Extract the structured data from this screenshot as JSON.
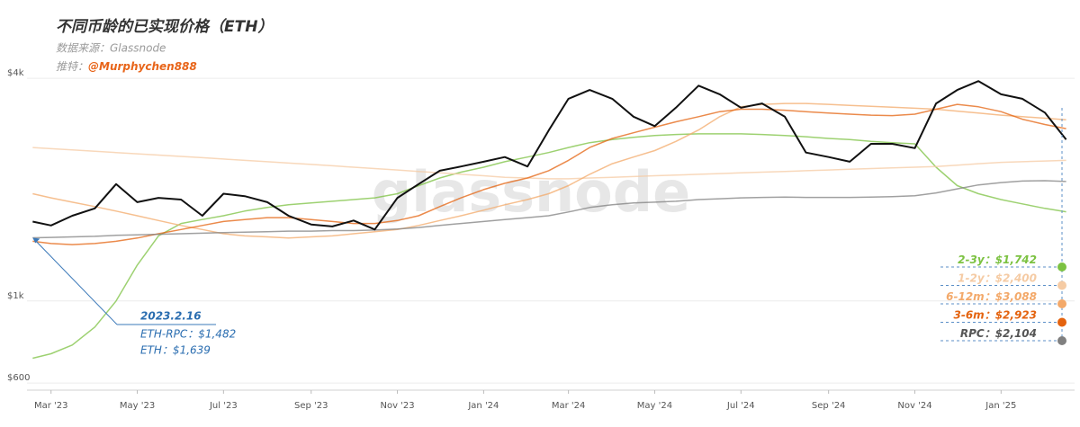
{
  "chart_data": {
    "type": "line",
    "title": "不同币龄的已实现价格（ETH）",
    "source": "数据来源：Glassnode",
    "twitter_label": "推特：",
    "twitter_handle": "@Murphychen888",
    "watermark": "glassnode",
    "log_scale": true,
    "grid": true,
    "x": [
      "2023-02-16",
      "2023-03-01",
      "2023-03-16",
      "2023-04-01",
      "2023-04-16",
      "2023-05-01",
      "2023-05-16",
      "2023-06-01",
      "2023-06-16",
      "2023-07-01",
      "2023-07-16",
      "2023-08-01",
      "2023-08-16",
      "2023-09-01",
      "2023-09-16",
      "2023-10-01",
      "2023-10-16",
      "2023-11-01",
      "2023-11-16",
      "2023-12-01",
      "2023-12-16",
      "2024-01-01",
      "2024-01-16",
      "2024-02-01",
      "2024-02-16",
      "2024-03-01",
      "2024-03-16",
      "2024-04-01",
      "2024-04-16",
      "2024-05-01",
      "2024-05-16",
      "2024-06-01",
      "2024-06-16",
      "2024-07-01",
      "2024-07-16",
      "2024-08-01",
      "2024-08-16",
      "2024-09-01",
      "2024-09-16",
      "2024-10-01",
      "2024-10-16",
      "2024-11-01",
      "2024-11-16",
      "2024-12-01",
      "2024-12-16",
      "2025-01-01",
      "2025-01-16",
      "2025-02-01",
      "2025-02-16"
    ],
    "xlim": [
      "2023-02-12",
      "2025-02-22"
    ],
    "xticks": [
      {
        "value": "2023-03-01",
        "label": "Mar '23"
      },
      {
        "value": "2023-05-01",
        "label": "May '23"
      },
      {
        "value": "2023-07-01",
        "label": "Jul '23"
      },
      {
        "value": "2023-09-01",
        "label": "Sep '23"
      },
      {
        "value": "2023-11-01",
        "label": "Nov '23"
      },
      {
        "value": "2024-01-01",
        "label": "Jan '24"
      },
      {
        "value": "2024-03-01",
        "label": "Mar '24"
      },
      {
        "value": "2024-05-01",
        "label": "May '24"
      },
      {
        "value": "2024-07-01",
        "label": "Jul '24"
      },
      {
        "value": "2024-09-01",
        "label": "Sep '24"
      },
      {
        "value": "2024-11-01",
        "label": "Nov '24"
      },
      {
        "value": "2025-01-01",
        "label": "Jan '25"
      }
    ],
    "ylim": [
      574,
      4280
    ],
    "yticks": [
      {
        "value": 600,
        "label": "$600"
      },
      {
        "value": 1000,
        "label": "$1k"
      },
      {
        "value": 4000,
        "label": "$4k"
      }
    ],
    "series": [
      {
        "name": "2-3y：",
        "color": "#7cc242",
        "values": [
          700,
          720,
          760,
          850,
          1000,
          1250,
          1500,
          1620,
          1660,
          1700,
          1750,
          1790,
          1820,
          1840,
          1860,
          1880,
          1900,
          1950,
          2050,
          2150,
          2230,
          2300,
          2380,
          2450,
          2520,
          2600,
          2680,
          2730,
          2770,
          2800,
          2820,
          2830,
          2830,
          2830,
          2820,
          2800,
          2780,
          2750,
          2730,
          2700,
          2680,
          2660,
          2300,
          2050,
          1950,
          1880,
          1830,
          1780,
          1742
        ],
        "value_labels": [
          null,
          null,
          null,
          null,
          null,
          null,
          null,
          null,
          null,
          null,
          null,
          null,
          null,
          null,
          null,
          null,
          null,
          null,
          null,
          null,
          null,
          null,
          null,
          null,
          null,
          null,
          null,
          null,
          null,
          null,
          null,
          null,
          null,
          null,
          null,
          null,
          null,
          null,
          null,
          null,
          null,
          null,
          null,
          null,
          null,
          null,
          null,
          null,
          "$1,742"
        ]
      },
      {
        "name": "1-2y：",
        "color": "#f5cba4",
        "values": [
          2600,
          2580,
          2560,
          2540,
          2520,
          2500,
          2480,
          2460,
          2440,
          2420,
          2400,
          2380,
          2360,
          2340,
          2320,
          2300,
          2280,
          2260,
          2240,
          2220,
          2200,
          2180,
          2160,
          2150,
          2140,
          2140,
          2150,
          2160,
          2170,
          2180,
          2190,
          2200,
          2210,
          2220,
          2230,
          2240,
          2250,
          2260,
          2270,
          2280,
          2290,
          2300,
          2310,
          2330,
          2350,
          2370,
          2380,
          2390,
          2400
        ],
        "value_labels": [
          null,
          null,
          null,
          null,
          null,
          null,
          null,
          null,
          null,
          null,
          null,
          null,
          null,
          null,
          null,
          null,
          null,
          null,
          null,
          null,
          null,
          null,
          null,
          null,
          null,
          null,
          null,
          null,
          null,
          null,
          null,
          null,
          null,
          null,
          null,
          null,
          null,
          null,
          null,
          null,
          null,
          null,
          null,
          null,
          null,
          null,
          null,
          null,
          "$2,400"
        ]
      },
      {
        "name": "6-12m：",
        "color": "#f3a96a",
        "values": [
          1950,
          1900,
          1850,
          1800,
          1750,
          1700,
          1650,
          1600,
          1560,
          1520,
          1500,
          1490,
          1480,
          1490,
          1500,
          1520,
          1540,
          1560,
          1600,
          1650,
          1700,
          1760,
          1820,
          1880,
          1950,
          2050,
          2200,
          2350,
          2450,
          2550,
          2700,
          2900,
          3150,
          3350,
          3400,
          3420,
          3420,
          3400,
          3380,
          3360,
          3340,
          3320,
          3300,
          3260,
          3220,
          3180,
          3150,
          3120,
          3088
        ],
        "value_labels": [
          null,
          null,
          null,
          null,
          null,
          null,
          null,
          null,
          null,
          null,
          null,
          null,
          null,
          null,
          null,
          null,
          null,
          null,
          null,
          null,
          null,
          null,
          null,
          null,
          null,
          null,
          null,
          null,
          null,
          null,
          null,
          null,
          null,
          null,
          null,
          null,
          null,
          null,
          null,
          null,
          null,
          null,
          null,
          null,
          null,
          null,
          null,
          null,
          "$3,088"
        ]
      },
      {
        "name": "3-6m：",
        "color": "#e4630f",
        "values": [
          1450,
          1430,
          1420,
          1430,
          1450,
          1480,
          1520,
          1560,
          1600,
          1640,
          1660,
          1680,
          1680,
          1660,
          1640,
          1620,
          1620,
          1650,
          1700,
          1800,
          1900,
          2000,
          2080,
          2150,
          2250,
          2400,
          2600,
          2750,
          2850,
          2950,
          3050,
          3150,
          3250,
          3300,
          3300,
          3280,
          3250,
          3220,
          3200,
          3180,
          3170,
          3200,
          3300,
          3400,
          3350,
          3250,
          3100,
          3000,
          2923
        ],
        "value_labels": [
          null,
          null,
          null,
          null,
          null,
          null,
          null,
          null,
          null,
          null,
          null,
          null,
          null,
          null,
          null,
          null,
          null,
          null,
          null,
          null,
          null,
          null,
          null,
          null,
          null,
          null,
          null,
          null,
          null,
          null,
          null,
          null,
          null,
          null,
          null,
          null,
          null,
          null,
          null,
          null,
          null,
          null,
          null,
          null,
          null,
          null,
          null,
          null,
          "$2,923"
        ]
      },
      {
        "name": "RPC：",
        "color": "#808080",
        "values": [
          1482,
          1485,
          1490,
          1495,
          1505,
          1510,
          1515,
          1520,
          1525,
          1530,
          1535,
          1540,
          1545,
          1545,
          1550,
          1550,
          1555,
          1565,
          1580,
          1600,
          1620,
          1640,
          1660,
          1680,
          1700,
          1740,
          1790,
          1820,
          1840,
          1850,
          1860,
          1880,
          1890,
          1900,
          1905,
          1910,
          1905,
          1905,
          1905,
          1910,
          1915,
          1925,
          1960,
          2010,
          2060,
          2090,
          2110,
          2115,
          2104
        ],
        "value_labels": [
          null,
          null,
          null,
          null,
          null,
          null,
          null,
          null,
          null,
          null,
          null,
          null,
          null,
          null,
          null,
          null,
          null,
          null,
          null,
          null,
          null,
          null,
          null,
          null,
          null,
          null,
          null,
          null,
          null,
          null,
          null,
          null,
          null,
          null,
          null,
          null,
          null,
          null,
          null,
          null,
          null,
          null,
          null,
          null,
          null,
          null,
          null,
          null,
          "$2,104"
        ]
      },
      {
        "color": "#111111",
        "values": [
          1639,
          1600,
          1700,
          1780,
          2070,
          1850,
          1900,
          1880,
          1700,
          1950,
          1920,
          1850,
          1700,
          1610,
          1590,
          1650,
          1560,
          1900,
          2070,
          2250,
          2310,
          2380,
          2450,
          2310,
          2890,
          3520,
          3720,
          3520,
          3150,
          2970,
          3330,
          3820,
          3620,
          3330,
          3420,
          3150,
          2520,
          2450,
          2380,
          2660,
          2660,
          2590,
          3420,
          3720,
          3930,
          3620,
          3520,
          3230,
          2730
        ]
      }
    ],
    "annotation": {
      "date": "2023.2.16",
      "lines": [
        "ETH-RPC：$1,482",
        "ETH：$1,639"
      ]
    }
  }
}
